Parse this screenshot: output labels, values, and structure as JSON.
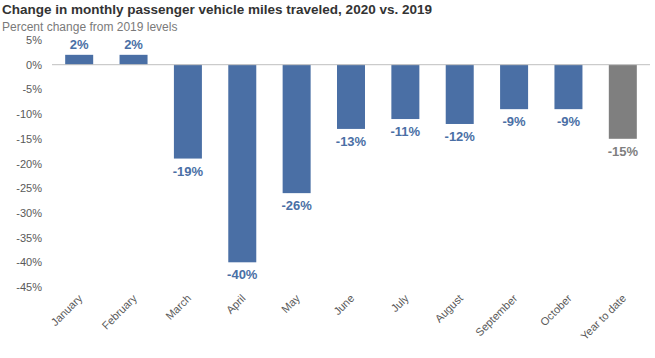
{
  "chart_data": {
    "type": "bar",
    "title": "Change in monthly passenger vehicle miles traveled, 2020 vs. 2019",
    "subtitle": "Percent change from 2019 levels",
    "categories": [
      "January",
      "February",
      "March",
      "April",
      "May",
      "June",
      "July",
      "August",
      "September",
      "October",
      "Year to date"
    ],
    "values": [
      2,
      2,
      -19,
      -40,
      -26,
      -13,
      -11,
      -12,
      -9,
      -9,
      -15
    ],
    "value_labels": [
      "2%",
      "2%",
      "-19%",
      "-40%",
      "-26%",
      "-13%",
      "-11%",
      "-12%",
      "-9%",
      "-9%",
      "-15%"
    ],
    "colors": [
      "#4a6fa5",
      "#4a6fa5",
      "#4a6fa5",
      "#4a6fa5",
      "#4a6fa5",
      "#4a6fa5",
      "#4a6fa5",
      "#4a6fa5",
      "#4a6fa5",
      "#4a6fa5",
      "#7f7f7f"
    ],
    "ylim": [
      -45,
      5
    ],
    "yticks": [
      {
        "value": 5,
        "label": "5%"
      },
      {
        "value": 0,
        "label": "0%"
      },
      {
        "value": -5,
        "label": "-5%"
      },
      {
        "value": -10,
        "label": "-10%"
      },
      {
        "value": -15,
        "label": "-15%"
      },
      {
        "value": -20,
        "label": "-20%"
      },
      {
        "value": -25,
        "label": "-25%"
      },
      {
        "value": -30,
        "label": "-30%"
      },
      {
        "value": -35,
        "label": "-35%"
      },
      {
        "value": -40,
        "label": "-40%"
      },
      {
        "value": -45,
        "label": "-45%"
      }
    ],
    "grid": false,
    "data_labels": true
  }
}
